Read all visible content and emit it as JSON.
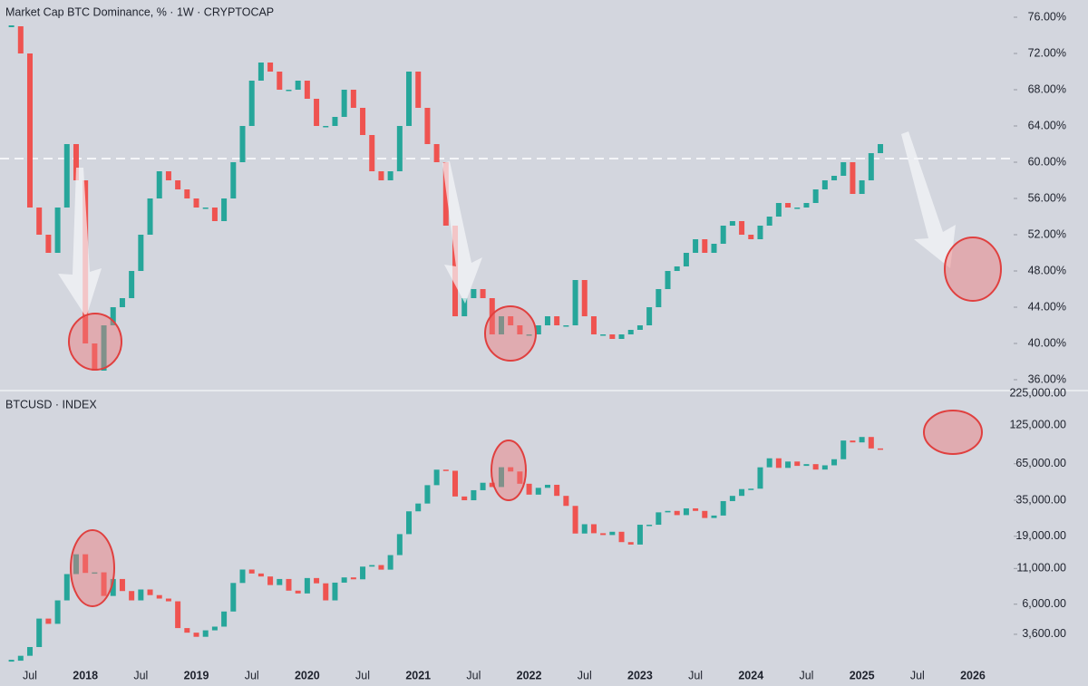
{
  "chart_data": [
    {
      "type": "candlestick",
      "title": "Market Cap BTC Dominance, % · 1W · CRYPTOCAP",
      "ylim": [
        34.8,
        77.9
      ],
      "yticks": [
        {
          "value": 36,
          "label": "36.00%"
        },
        {
          "value": 40,
          "label": "40.00%"
        },
        {
          "value": 44,
          "label": "44.00%"
        },
        {
          "value": 48,
          "label": "48.00%"
        },
        {
          "value": 52,
          "label": "52.00%"
        },
        {
          "value": 56,
          "label": "56.00%"
        },
        {
          "value": 60,
          "label": "60.00%"
        },
        {
          "value": 64,
          "label": "64.00%"
        },
        {
          "value": 68,
          "label": "68.00%"
        },
        {
          "value": 72,
          "label": "72.00%"
        },
        {
          "value": 76,
          "label": "76.00%"
        }
      ],
      "hline": 60.4,
      "up_color": "#26a69a",
      "down_color": "#ef5350",
      "values": [
        75,
        72,
        55,
        52,
        50,
        55,
        62,
        58,
        40,
        37,
        42,
        44,
        45,
        48,
        52,
        56,
        59,
        58,
        57,
        56,
        55,
        55,
        53.5,
        56,
        60,
        64,
        69,
        71,
        70,
        68,
        68,
        69,
        67,
        64,
        64,
        65,
        68,
        66,
        63,
        59,
        58,
        59,
        64,
        70,
        66,
        62,
        60,
        53,
        43,
        45,
        46,
        45,
        41,
        43,
        42,
        41,
        41,
        42,
        43,
        42,
        42,
        47,
        43,
        41,
        41,
        40.5,
        41,
        41.5,
        42,
        44,
        46,
        48,
        48.5,
        50,
        51.5,
        50,
        51,
        53,
        53.5,
        52,
        51.5,
        53,
        54,
        55.5,
        55,
        55,
        55.5,
        57,
        58,
        58.5,
        60,
        56.5,
        58,
        61,
        62,
        null,
        null,
        null,
        null,
        null,
        null,
        null,
        null,
        null,
        null,
        null,
        null
      ]
    },
    {
      "type": "candlestick",
      "title": "BTCUSD · INDEX",
      "log": true,
      "ylim": [
        2100,
        225000
      ],
      "yticks": [
        {
          "value": 3600,
          "label": "3,600.00"
        },
        {
          "value": 6000,
          "label": "6,000.00"
        },
        {
          "value": 11000,
          "label": "11,000.00"
        },
        {
          "value": 19000,
          "label": "19,000.00"
        },
        {
          "value": 35000,
          "label": "35,000.00"
        },
        {
          "value": 65000,
          "label": "65,000.00"
        },
        {
          "value": 125000,
          "label": "125,000.00"
        },
        {
          "value": 225000,
          "label": "225,000.00"
        }
      ],
      "up_color": "#26a69a",
      "down_color": "#ef5350",
      "categories": [
        null,
        null,
        "Jul",
        null,
        null,
        null,
        null,
        null,
        "2018",
        null,
        null,
        null,
        null,
        null,
        "Jul",
        null,
        null,
        null,
        null,
        null,
        "2019",
        null,
        null,
        null,
        null,
        null,
        "Jul",
        null,
        null,
        null,
        null,
        null,
        "2020",
        null,
        null,
        null,
        null,
        null,
        "Jul",
        null,
        null,
        null,
        null,
        null,
        "2021",
        null,
        null,
        null,
        null,
        null,
        "Jul",
        null,
        null,
        null,
        null,
        null,
        "2022",
        null,
        null,
        null,
        null,
        null,
        "Jul",
        null,
        null,
        null,
        null,
        null,
        "2023",
        null,
        null,
        null,
        null,
        null,
        "Jul",
        null,
        null,
        null,
        null,
        null,
        "2024",
        null,
        null,
        null,
        null,
        null,
        "Jul",
        null,
        null,
        null,
        null,
        null,
        "2025",
        null,
        null,
        null,
        null,
        null,
        "Jul",
        null,
        null,
        null,
        null,
        null,
        "2026",
        null,
        null
      ],
      "values": [
        2300,
        2500,
        2900,
        4700,
        4300,
        6400,
        10000,
        14000,
        10200,
        10300,
        6900,
        9200,
        7500,
        6400,
        7700,
        7000,
        6600,
        6300,
        4000,
        3700,
        3450,
        3850,
        4100,
        5300,
        8600,
        10800,
        10100,
        9600,
        8300,
        9200,
        7550,
        7200,
        9350,
        8550,
        6400,
        8650,
        9450,
        9150,
        11350,
        11650,
        10780,
        13800,
        19700,
        29000,
        33100,
        45200,
        58800,
        57700,
        37300,
        35000,
        41500,
        47100,
        43800,
        61300,
        57000,
        46300,
        38500,
        43200,
        45500,
        37700,
        31800,
        19900,
        23300,
        20000,
        19400,
        20500,
        17200,
        16500,
        23100,
        23100,
        28500,
        29200,
        27200,
        30500,
        29200,
        25900,
        27000,
        34500,
        37700,
        42300,
        42600,
        61200,
        71300,
        60600,
        67500,
        62700,
        64600,
        58900,
        63300,
        70200,
        96400,
        93400,
        102400,
        84300,
        82500,
        null,
        null,
        null,
        null,
        null,
        null,
        null,
        null,
        null,
        null,
        null,
        null
      ]
    }
  ]
}
